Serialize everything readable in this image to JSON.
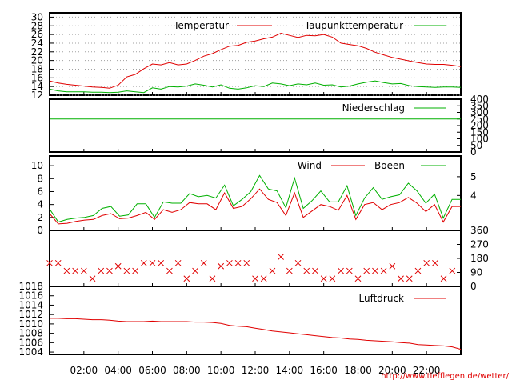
{
  "source_url": "http://www.tiefflegen.de/wetter/",
  "time_ticks": [
    "02:00",
    "04:00",
    "06:00",
    "08:00",
    "10:00",
    "12:00",
    "14:00",
    "16:00",
    "18:00",
    "20:00",
    "22:00"
  ],
  "colors": {
    "red": "#e00000",
    "green": "#00b000",
    "grid": "#a0a0a0",
    "axis": "#000000"
  },
  "chart_data": [
    {
      "id": "temperature",
      "type": "line",
      "ylim": [
        12,
        31
      ],
      "ticks_left": [
        "12",
        "14",
        "16",
        "18",
        "20",
        "22",
        "24",
        "26",
        "28",
        "30"
      ],
      "grid": true,
      "series": [
        {
          "name": "Temperatur",
          "color": "#e00000",
          "values": [
            15.3,
            14.8,
            14.5,
            14.3,
            14.1,
            13.9,
            13.8,
            13.6,
            14.3,
            16.2,
            16.8,
            18.1,
            19.2,
            19.0,
            19.5,
            19.0,
            19.2,
            20.0,
            21.0,
            21.6,
            22.5,
            23.3,
            23.5,
            24.2,
            24.5,
            25.0,
            25.4,
            26.3,
            25.8,
            25.3,
            25.8,
            25.7,
            26.0,
            25.4,
            24.0,
            23.7,
            23.4,
            22.8,
            21.9,
            21.3,
            20.7,
            20.3,
            19.9,
            19.5,
            19.2,
            19.1,
            19.1,
            18.9,
            18.6
          ]
        },
        {
          "name": "Taupunkttemperatur",
          "color": "#00b000",
          "values": [
            13.4,
            13.0,
            12.8,
            12.8,
            12.8,
            12.7,
            12.7,
            12.6,
            12.7,
            13.0,
            12.8,
            12.6,
            13.7,
            13.4,
            14.0,
            13.9,
            14.1,
            14.6,
            14.3,
            13.9,
            14.4,
            13.6,
            13.4,
            13.7,
            14.2,
            14.0,
            14.8,
            14.6,
            14.2,
            14.6,
            14.4,
            14.8,
            14.3,
            14.4,
            13.9,
            14.1,
            14.6,
            15.0,
            15.3,
            14.9,
            14.6,
            14.7,
            14.2,
            14.0,
            13.9,
            13.8,
            13.9,
            13.9,
            13.8
          ]
        }
      ]
    },
    {
      "id": "precipitation",
      "type": "line",
      "ylim": [
        0,
        400
      ],
      "ticks_right": [
        "0",
        "50",
        "100",
        "150",
        "200",
        "250",
        "300",
        "350",
        "400"
      ],
      "series": [
        {
          "name": "Niederschlag",
          "color": "#00b000",
          "values": [
            250,
            250
          ]
        }
      ]
    },
    {
      "id": "wind",
      "type": "line",
      "ylim": [
        0,
        11.5
      ],
      "ticks_left": [
        "0",
        "2",
        "4",
        "6",
        "8",
        "10"
      ],
      "ticks_right": [
        "4",
        "5"
      ],
      "series": [
        {
          "name": "Wind",
          "color": "#e00000",
          "values": [
            2.6,
            1.0,
            1.1,
            1.4,
            1.6,
            1.7,
            2.3,
            2.6,
            1.8,
            1.9,
            2.3,
            2.8,
            1.7,
            3.2,
            2.8,
            3.2,
            4.3,
            4.1,
            4.1,
            3.2,
            5.8,
            3.4,
            3.7,
            4.9,
            6.4,
            4.8,
            4.3,
            2.3,
            5.8,
            2.0,
            3.0,
            4.0,
            3.7,
            3.1,
            5.4,
            1.7,
            4.0,
            4.3,
            3.2,
            4.0,
            4.3,
            5.1,
            4.2,
            2.9,
            4.0,
            1.3,
            3.7,
            3.7
          ]
        },
        {
          "name": "Boeen",
          "color": "#00b000",
          "values": [
            3.3,
            1.3,
            1.7,
            1.9,
            2.0,
            2.3,
            3.4,
            3.7,
            2.2,
            2.4,
            4.1,
            4.1,
            2.0,
            4.4,
            4.2,
            4.2,
            5.7,
            5.2,
            5.4,
            5.0,
            7.0,
            3.8,
            4.8,
            6.0,
            8.5,
            6.4,
            6.1,
            3.5,
            8.1,
            3.4,
            4.6,
            6.1,
            4.4,
            4.4,
            6.9,
            2.3,
            5.0,
            6.6,
            4.8,
            5.2,
            5.5,
            7.3,
            6.1,
            4.2,
            5.6,
            1.9,
            4.8,
            4.8
          ]
        }
      ]
    },
    {
      "id": "wind_direction",
      "type": "scatter",
      "ylim": [
        0,
        360
      ],
      "ticks_right": [
        "0",
        "90",
        "180",
        "270",
        "360"
      ],
      "points": [
        {
          "h": 0.0,
          "deg": 150
        },
        {
          "h": 0.5,
          "deg": 150
        },
        {
          "h": 1.0,
          "deg": 100
        },
        {
          "h": 1.5,
          "deg": 100
        },
        {
          "h": 2.0,
          "deg": 100
        },
        {
          "h": 2.5,
          "deg": 50
        },
        {
          "h": 3.0,
          "deg": 100
        },
        {
          "h": 3.5,
          "deg": 100
        },
        {
          "h": 4.0,
          "deg": 130
        },
        {
          "h": 4.5,
          "deg": 100
        },
        {
          "h": 5.0,
          "deg": 100
        },
        {
          "h": 5.5,
          "deg": 150
        },
        {
          "h": 6.0,
          "deg": 150
        },
        {
          "h": 6.5,
          "deg": 150
        },
        {
          "h": 7.0,
          "deg": 100
        },
        {
          "h": 7.5,
          "deg": 150
        },
        {
          "h": 8.0,
          "deg": 50
        },
        {
          "h": 8.5,
          "deg": 100
        },
        {
          "h": 9.0,
          "deg": 150
        },
        {
          "h": 9.5,
          "deg": 50
        },
        {
          "h": 10.0,
          "deg": 130
        },
        {
          "h": 10.5,
          "deg": 150
        },
        {
          "h": 11.0,
          "deg": 150
        },
        {
          "h": 11.5,
          "deg": 150
        },
        {
          "h": 12.0,
          "deg": 50
        },
        {
          "h": 12.5,
          "deg": 50
        },
        {
          "h": 13.0,
          "deg": 100
        },
        {
          "h": 13.5,
          "deg": 190
        },
        {
          "h": 14.0,
          "deg": 100
        },
        {
          "h": 14.5,
          "deg": 150
        },
        {
          "h": 15.0,
          "deg": 100
        },
        {
          "h": 15.5,
          "deg": 100
        },
        {
          "h": 16.0,
          "deg": 50
        },
        {
          "h": 16.5,
          "deg": 50
        },
        {
          "h": 17.0,
          "deg": 100
        },
        {
          "h": 17.5,
          "deg": 100
        },
        {
          "h": 18.0,
          "deg": 50
        },
        {
          "h": 18.5,
          "deg": 100
        },
        {
          "h": 19.0,
          "deg": 100
        },
        {
          "h": 19.5,
          "deg": 100
        },
        {
          "h": 20.0,
          "deg": 130
        },
        {
          "h": 20.5,
          "deg": 50
        },
        {
          "h": 21.0,
          "deg": 50
        },
        {
          "h": 21.5,
          "deg": 100
        },
        {
          "h": 22.0,
          "deg": 150
        },
        {
          "h": 22.5,
          "deg": 150
        },
        {
          "h": 23.0,
          "deg": 50
        },
        {
          "h": 23.5,
          "deg": 100
        }
      ]
    },
    {
      "id": "pressure",
      "type": "line",
      "ylim": [
        1003.5,
        1018
      ],
      "ticks_left": [
        "1004",
        "1006",
        "1008",
        "1010",
        "1012",
        "1014",
        "1016",
        "1018"
      ],
      "series": [
        {
          "name": "Luftdruck",
          "color": "#e00000",
          "values": [
            1011.2,
            1011.2,
            1011.1,
            1011.1,
            1011.0,
            1010.9,
            1010.9,
            1010.8,
            1010.6,
            1010.5,
            1010.5,
            1010.5,
            1010.6,
            1010.5,
            1010.5,
            1010.5,
            1010.5,
            1010.4,
            1010.4,
            1010.3,
            1010.1,
            1009.7,
            1009.5,
            1009.4,
            1009.1,
            1008.8,
            1008.5,
            1008.3,
            1008.1,
            1007.9,
            1007.7,
            1007.5,
            1007.3,
            1007.1,
            1007.0,
            1006.8,
            1006.7,
            1006.5,
            1006.4,
            1006.3,
            1006.2,
            1006.0,
            1005.9,
            1005.6,
            1005.5,
            1005.4,
            1005.3,
            1005.1,
            1004.6
          ]
        }
      ]
    }
  ]
}
